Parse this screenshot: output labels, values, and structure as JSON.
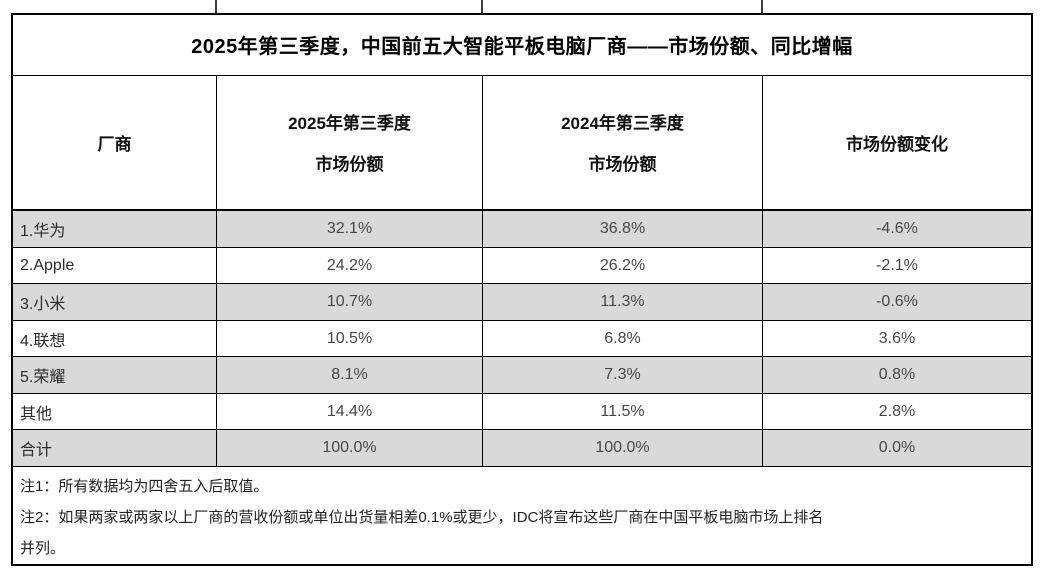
{
  "table": {
    "title": "2025年第三季度，中国前五大智能平板电脑厂商——市场份额、同比增幅",
    "header": {
      "vendor": "厂商",
      "q3_2025_line1": "2025年第三季度",
      "q3_2025_line2": "市场份额",
      "q3_2024_line1": "2024年第三季度",
      "q3_2024_line2": "市场份额",
      "change": "市场份额变化"
    },
    "rows": [
      {
        "vendor": "1.华为",
        "share_2025": "32.1%",
        "share_2024": "36.8%",
        "change": "-4.6%"
      },
      {
        "vendor": "2.Apple",
        "share_2025": "24.2%",
        "share_2024": "26.2%",
        "change": "-2.1%"
      },
      {
        "vendor": "3.小米",
        "share_2025": "10.7%",
        "share_2024": "11.3%",
        "change": "-0.6%"
      },
      {
        "vendor": "4.联想",
        "share_2025": "10.5%",
        "share_2024": "6.8%",
        "change": "3.6%"
      },
      {
        "vendor": "5.荣耀",
        "share_2025": "8.1%",
        "share_2024": "7.3%",
        "change": "0.8%"
      },
      {
        "vendor": "其他",
        "share_2025": "14.4%",
        "share_2024": "11.5%",
        "change": "2.8%"
      },
      {
        "vendor": "合计",
        "share_2025": "100.0%",
        "share_2024": "100.0%",
        "change": "0.0%"
      }
    ],
    "notes_lines": [
      "注1：所有数据均为四舍五入后取值。",
      "注2：如果两家或两家以上厂商的营收份额或单位出货量相差0.1%或更少，IDC将宣布这些厂商在中国平板电脑市场上排名",
      "并列。"
    ],
    "colors": {
      "shaded_row": "#d9d9d9",
      "border": "#000000",
      "background": "#ffffff"
    }
  },
  "chart_data": {
    "type": "table",
    "title": "2025年第三季度，中国前五大智能平板电脑厂商——市场份额、同比增幅",
    "columns": [
      "厂商",
      "2025年第三季度市场份额",
      "2024年第三季度市场份额",
      "市场份额变化"
    ],
    "rows": [
      [
        "1.华为",
        "32.1%",
        "36.8%",
        "-4.6%"
      ],
      [
        "2.Apple",
        "24.2%",
        "26.2%",
        "-2.1%"
      ],
      [
        "3.小米",
        "10.7%",
        "11.3%",
        "-0.6%"
      ],
      [
        "4.联想",
        "10.5%",
        "6.8%",
        "3.6%"
      ],
      [
        "5.荣耀",
        "8.1%",
        "7.3%",
        "0.8%"
      ],
      [
        "其他",
        "14.4%",
        "11.5%",
        "2.8%"
      ],
      [
        "合计",
        "100.0%",
        "100.0%",
        "0.0%"
      ]
    ],
    "notes": [
      "注1：所有数据均为四舍五入后取值。",
      "注2：如果两家或两家以上厂商的营收份额或单位出货量相差0.1%或更少，IDC将宣布这些厂商在中国平板电脑市场上排名并列。"
    ],
    "layout_hints": {
      "shaded_rows": [
        0,
        2,
        4,
        6
      ],
      "value_alignment": "center",
      "vendor_alignment": "left"
    }
  }
}
